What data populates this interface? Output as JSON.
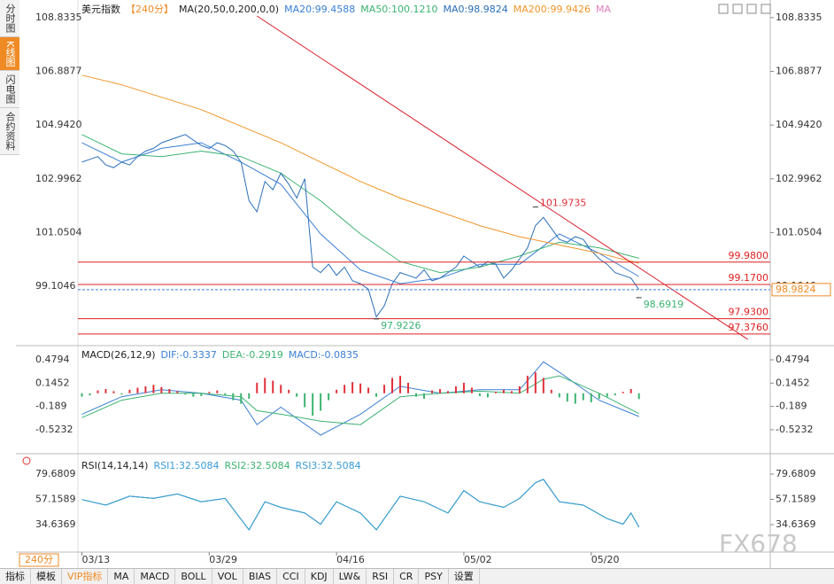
{
  "ui": {
    "tabs": [
      "分时图",
      "K线图",
      "闪电图",
      "合约资料"
    ],
    "active_tab": 1,
    "period": "240分",
    "watermark": "FX678",
    "toolbar": [
      "指标",
      "模板",
      "VIP指标",
      "MA",
      "MACD",
      "BOLL",
      "VOL",
      "BIAS",
      "CCI",
      "KDJ",
      "LW&",
      "RSI",
      "CR",
      "PSY",
      "设置"
    ]
  },
  "chart_data": [
    {
      "type": "line",
      "title": "美元指数",
      "subtitle": "【240分】",
      "indicator": "MA(20,50,0,200,0,0)",
      "legend_suffix": "MA",
      "xlim": [
        -0.5,
        86.5
      ],
      "ylim": [
        97.02,
        109.31
      ],
      "yticks": [
        {
          "value": 108.8335,
          "label": "108.8335"
        },
        {
          "value": 106.8877,
          "label": "106.8877"
        },
        {
          "value": 104.942,
          "label": "104.9420"
        },
        {
          "value": 102.9962,
          "label": "102.9962"
        },
        {
          "value": 101.0504,
          "label": "101.0504"
        },
        {
          "value": 99.1046,
          "label": "99.1046"
        }
      ],
      "series": [
        {
          "name": "MA20:99.4588",
          "color": "#3a7fd5",
          "x": [
            0,
            5,
            10,
            15,
            20,
            25,
            30,
            35,
            40,
            45,
            50,
            55,
            60,
            65,
            70
          ],
          "values": [
            104.3,
            103.6,
            104.1,
            104.3,
            103.6,
            102.8,
            101.0,
            99.7,
            99.2,
            99.4,
            99.9,
            99.9,
            101.0,
            100.3,
            99.46
          ]
        },
        {
          "name": "MA50:100.1210",
          "color": "#3cb371",
          "x": [
            0,
            5,
            10,
            15,
            20,
            25,
            30,
            35,
            40,
            45,
            50,
            55,
            60,
            65,
            70
          ],
          "values": [
            104.6,
            103.9,
            103.8,
            104.0,
            103.8,
            103.2,
            102.2,
            101.0,
            100.0,
            99.6,
            99.8,
            100.2,
            100.7,
            100.5,
            100.12
          ]
        },
        {
          "name": "MA0:98.9824",
          "color": "#2a6fb8",
          "x": [
            0,
            1,
            2,
            3,
            4,
            5,
            6,
            7,
            8,
            9,
            10,
            11,
            12,
            13,
            14,
            15,
            16,
            17,
            18,
            19,
            20,
            21,
            22,
            23,
            24,
            25,
            26,
            27,
            28,
            29,
            30,
            31,
            32,
            33,
            34,
            35,
            36,
            37,
            38,
            39,
            40,
            41,
            42,
            43,
            44,
            45,
            46,
            47,
            48,
            49,
            50,
            51,
            52,
            53,
            54,
            55,
            56,
            57,
            58,
            59,
            60,
            61,
            62,
            63,
            64,
            65,
            66,
            67,
            68,
            69,
            70
          ],
          "values": [
            103.6,
            103.7,
            103.8,
            103.5,
            103.4,
            103.6,
            103.5,
            103.8,
            104.0,
            104.1,
            104.3,
            104.4,
            104.5,
            104.6,
            104.4,
            104.2,
            104.1,
            104.3,
            104.2,
            104.0,
            103.6,
            102.2,
            101.8,
            102.9,
            102.6,
            103.2,
            102.8,
            102.3,
            103.0,
            99.8,
            99.6,
            99.9,
            99.5,
            99.8,
            99.3,
            99.2,
            99.0,
            98.0,
            98.4,
            99.2,
            99.6,
            99.5,
            99.4,
            99.7,
            99.3,
            99.4,
            99.6,
            99.8,
            100.2,
            100.0,
            99.8,
            100.0,
            99.9,
            99.4,
            99.7,
            100.1,
            100.5,
            101.3,
            101.6,
            101.2,
            100.8,
            100.7,
            100.9,
            100.8,
            100.4,
            100.1,
            99.9,
            99.6,
            99.5,
            99.4,
            98.98
          ]
        },
        {
          "name": "MA200:99.9426",
          "color": "#f0962a",
          "x": [
            0,
            5,
            10,
            15,
            20,
            25,
            30,
            35,
            40,
            45,
            50,
            55,
            60,
            65,
            70
          ],
          "values": [
            106.75,
            106.4,
            105.95,
            105.5,
            104.9,
            104.3,
            103.6,
            102.9,
            102.3,
            101.8,
            101.3,
            100.9,
            100.6,
            100.3,
            99.94
          ]
        }
      ],
      "levels": [
        {
          "value": 99.98,
          "label": "99.9800"
        },
        {
          "value": 99.17,
          "label": "99.1700"
        },
        {
          "value": 97.93,
          "label": "97.9300"
        },
        {
          "value": 97.376,
          "label": "97.3760"
        }
      ],
      "level_color": "#e02020",
      "annotations": [
        {
          "x": 57,
          "value": 101.9735,
          "color": "#e0303a"
        },
        {
          "x": 37,
          "value": 97.9226,
          "color": "#3cb371"
        },
        {
          "x": 70,
          "value": 98.6919,
          "color": "#3cb371"
        }
      ],
      "trendline": {
        "x": [
          22,
          83.7
        ],
        "values": [
          108.894,
          97.18
        ],
        "color": "#d81e2a"
      },
      "last": 98.9824
    },
    {
      "type": "macd",
      "title": "MACD(26,12,9)",
      "xlim": [
        -0.5,
        86.5
      ],
      "ylim": [
        -0.841,
        0.619
      ],
      "yticks": [
        0.4794,
        0.1452,
        -0.189,
        -0.5232
      ],
      "up_color": "#e0303a",
      "down_color": "#3cb371",
      "series": [
        {
          "name": "DIF:-0.3337",
          "color": "#3a7fd5",
          "x": [
            0,
            5,
            10,
            15,
            20,
            22,
            25,
            30,
            35,
            40,
            45,
            50,
            55,
            58,
            60,
            65,
            70
          ],
          "values": [
            -0.3,
            -0.05,
            0.05,
            0.0,
            -0.1,
            -0.45,
            -0.2,
            -0.6,
            -0.3,
            0.1,
            0.0,
            0.05,
            0.05,
            0.45,
            0.3,
            -0.1,
            -0.3337
          ]
        },
        {
          "name": "DEA:-0.2919",
          "color": "#3cb371",
          "x": [
            0,
            5,
            10,
            15,
            20,
            22,
            25,
            30,
            35,
            40,
            45,
            50,
            55,
            58,
            60,
            65,
            70
          ],
          "values": [
            -0.35,
            -0.1,
            0.0,
            0.0,
            -0.05,
            -0.25,
            -0.3,
            -0.4,
            -0.45,
            -0.05,
            0.0,
            0.03,
            0.0,
            0.2,
            0.25,
            0.0,
            -0.2919
          ]
        },
        {
          "name": "MACD:-0.0835",
          "color": "#3a7fd5",
          "style": "bar",
          "x": [
            0,
            1,
            2,
            3,
            4,
            5,
            6,
            7,
            8,
            9,
            10,
            11,
            12,
            13,
            14,
            15,
            16,
            17,
            18,
            19,
            20,
            21,
            22,
            23,
            24,
            25,
            26,
            27,
            28,
            29,
            30,
            31,
            32,
            33,
            34,
            35,
            36,
            37,
            38,
            39,
            40,
            41,
            42,
            43,
            44,
            45,
            46,
            47,
            48,
            49,
            50,
            51,
            52,
            53,
            54,
            55,
            56,
            57,
            58,
            59,
            60,
            61,
            62,
            63,
            64,
            65,
            66,
            67,
            68,
            69,
            70
          ],
          "values": [
            -0.05,
            -0.03,
            0.04,
            0.06,
            0.03,
            -0.02,
            0.05,
            0.08,
            0.1,
            0.12,
            0.09,
            0.06,
            0.03,
            -0.02,
            -0.05,
            -0.04,
            0.02,
            0.04,
            -0.03,
            -0.1,
            -0.15,
            -0.08,
            0.15,
            0.22,
            0.18,
            0.12,
            0.05,
            -0.05,
            -0.2,
            -0.32,
            -0.25,
            -0.1,
            0.05,
            0.12,
            0.16,
            0.14,
            0.08,
            -0.05,
            0.12,
            0.22,
            0.25,
            0.15,
            -0.05,
            -0.08,
            0.04,
            0.06,
            0.03,
            0.1,
            0.15,
            0.08,
            -0.04,
            -0.06,
            0.02,
            0.05,
            0.03,
            0.1,
            0.25,
            0.3,
            0.22,
            0.05,
            -0.06,
            -0.12,
            -0.15,
            -0.1,
            -0.13,
            -0.08,
            -0.05,
            -0.03,
            0.02,
            0.06,
            -0.0835
          ]
        }
      ]
    },
    {
      "type": "line",
      "title": "RSI(14,14,14)",
      "xlim": [
        -0.5,
        86.5
      ],
      "ylim": [
        6.2,
        91.5
      ],
      "yticks": [
        79.6809,
        57.1589,
        34.6369
      ],
      "xticks": [
        {
          "value": 0,
          "label": "03/13"
        },
        {
          "value": 16,
          "label": "03/29"
        },
        {
          "value": 32,
          "label": "04/16"
        },
        {
          "value": 48,
          "label": "05/02"
        },
        {
          "value": 64,
          "label": "05/20"
        }
      ],
      "series": [
        {
          "name": "RSI1:32.5084",
          "color": "#3a9ad9",
          "x": [
            0,
            3,
            6,
            9,
            12,
            15,
            18,
            21,
            23,
            25,
            28,
            30,
            32,
            35,
            37,
            40,
            43,
            46,
            48,
            50,
            53,
            55,
            57,
            58,
            60,
            63,
            66,
            68,
            69,
            70
          ],
          "values": [
            57,
            52,
            60,
            58,
            62,
            55,
            58,
            30,
            55,
            50,
            45,
            35,
            55,
            45,
            30,
            60,
            55,
            45,
            65,
            55,
            50,
            58,
            72,
            75,
            55,
            52,
            40,
            35,
            45,
            32.5084
          ]
        },
        {
          "name": "RSI2:32.5084",
          "color": "#3cb371",
          "x": [
            0,
            3,
            6,
            9,
            12,
            15,
            18,
            21,
            23,
            25,
            28,
            30,
            32,
            35,
            37,
            40,
            43,
            46,
            48,
            50,
            53,
            55,
            57,
            58,
            60,
            63,
            66,
            68,
            69,
            70
          ],
          "values": [
            57,
            52,
            60,
            58,
            62,
            55,
            58,
            30,
            55,
            50,
            45,
            35,
            55,
            45,
            30,
            60,
            55,
            45,
            65,
            55,
            50,
            58,
            72,
            75,
            55,
            52,
            40,
            35,
            45,
            32.5084
          ]
        },
        {
          "name": "RSI3:32.5084",
          "color": "#3a9ad9",
          "x": [
            0,
            3,
            6,
            9,
            12,
            15,
            18,
            21,
            23,
            25,
            28,
            30,
            32,
            35,
            37,
            40,
            43,
            46,
            48,
            50,
            53,
            55,
            57,
            58,
            60,
            63,
            66,
            68,
            69,
            70
          ],
          "values": [
            57,
            52,
            60,
            58,
            62,
            55,
            58,
            30,
            55,
            50,
            45,
            35,
            55,
            45,
            30,
            60,
            55,
            45,
            65,
            55,
            50,
            58,
            72,
            75,
            55,
            52,
            40,
            35,
            45,
            32.5084
          ]
        }
      ]
    }
  ]
}
